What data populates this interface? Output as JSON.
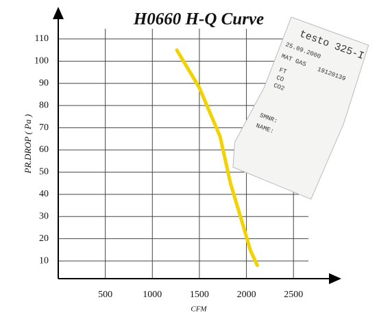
{
  "chart_data": {
    "type": "line",
    "title": "H0660 H-Q Curve",
    "x_label": "CFM",
    "y_label": "PR.DROP ( Pa )",
    "x": [
      1260,
      1500,
      1720,
      1830,
      1950,
      2040,
      2115
    ],
    "values": [
      105,
      88,
      66,
      45,
      28,
      15,
      8
    ],
    "color": "#f2d200",
    "xlim": [
      0,
      2950
    ],
    "ylim": [
      2,
      122
    ],
    "xticks": [
      500,
      1000,
      1500,
      2000,
      2500
    ],
    "yticks": [
      10,
      20,
      30,
      40,
      50,
      60,
      70,
      80,
      90,
      100,
      110
    ],
    "grid": true
  },
  "receipt": {
    "lines": [
      "testo 325-I",
      "25.09.2000",
      "MAT GAS",
      "19120139",
      "FT",
      "CO",
      "CO2",
      "SMNR:",
      "NAME:"
    ]
  }
}
